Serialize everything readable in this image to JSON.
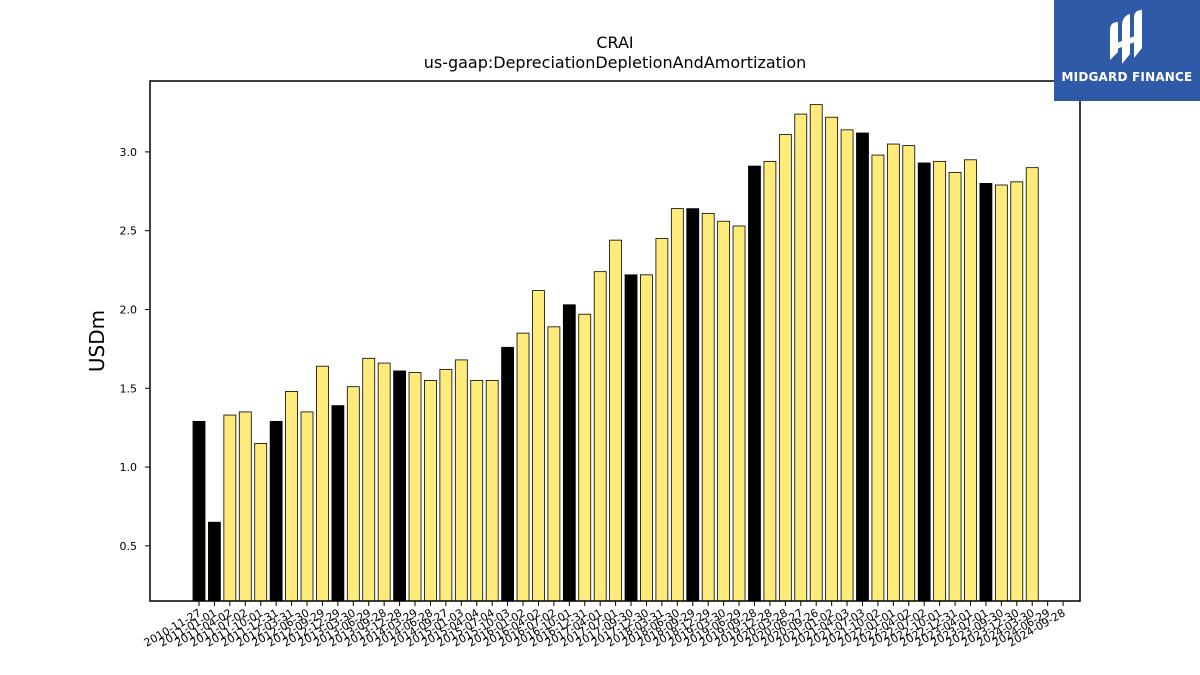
{
  "logo": {
    "text": "MIDGARD FINANCE"
  },
  "chart_data": {
    "type": "bar",
    "title": "CRAI",
    "subtitle": "us-gaap:DepreciationDepletionAndAmortization",
    "ylabel": "USDm",
    "xlabel": "",
    "ylim": [
      0.15,
      3.45
    ],
    "yticks": [
      "0.5",
      "1.0",
      "1.5",
      "2.0",
      "2.5",
      "3.0"
    ],
    "grid": false,
    "colors": {
      "highlight": "#000000",
      "normal": "#ffeb7a",
      "edge": "#000000"
    },
    "categories": [
      "2010-11-27",
      "2011-01-01",
      "2011-04-02",
      "2011-07-02",
      "2011-10-01",
      "2011-12-31",
      "2012-03-31",
      "2012-06-30",
      "2012-09-29",
      "2012-12-29",
      "2013-03-30",
      "2013-06-29",
      "2013-09-28",
      "2013-12-28",
      "2014-03-29",
      "2014-06-28",
      "2014-09-27",
      "2015-01-03",
      "2015-04-04",
      "2015-07-04",
      "2015-10-03",
      "2016-01-02",
      "2016-04-02",
      "2016-07-02",
      "2016-10-01",
      "2016-12-31",
      "2017-04-01",
      "2017-07-01",
      "2017-09-30",
      "2017-12-30",
      "2018-03-31",
      "2018-06-30",
      "2018-09-29",
      "2018-12-29",
      "2019-03-30",
      "2019-06-29",
      "2019-09-28",
      "2019-12-28",
      "2020-03-28",
      "2020-06-27",
      "2020-09-26",
      "2021-01-02",
      "2021-04-03",
      "2021-07-03",
      "2021-10-02",
      "2022-01-01",
      "2022-04-02",
      "2022-07-02",
      "2022-10-01",
      "2022-12-31",
      "2023-04-01",
      "2023-07-01",
      "2023-09-30",
      "2023-12-30",
      "2024-03-30",
      "2024-06-29",
      "2024-09-28"
    ],
    "xtick_labels": [
      "2010-11-27",
      "2011-01-01",
      "2011-04-02",
      "2011-07-02",
      "2011-10-01",
      "2011-12-31",
      "2012-03-31",
      "2012-06-30",
      "2012-09-29",
      "2012-12-29",
      "2013-03-30",
      "2013-06-29",
      "2013-09-28",
      "2013-12-28",
      "2014-03-29",
      "2014-06-28",
      "2014-09-27",
      "2015-01-03",
      "2015-04-04",
      "2015-07-04",
      "2015-10-03",
      "2016-01-02",
      "2016-04-02",
      "2016-07-02",
      "2016-10-01",
      "2016-12-31",
      "2017-04-01",
      "2017-07-01",
      "2017-09-30",
      "2017-12-30",
      "2018-03-31",
      "2018-06-30",
      "2018-09-29",
      "2018-12-29",
      "2019-03-30",
      "2019-06-29",
      "2019-09-28",
      "2019-12-28",
      "2020-03-28",
      "2020-06-27",
      "2020-09-26",
      "2021-01-02",
      "2021-04-03",
      "2021-07-03",
      "2021-10-02",
      "2022-01-01",
      "2022-04-02",
      "2022-07-02",
      "2022-10-01",
      "2022-12-31",
      "2023-04-01",
      "2023-07-01",
      "2023-09-30",
      "2023-12-30",
      "2024-03-30",
      "2024-06-29",
      "2024-09-28"
    ],
    "values": [
      1.29,
      0.65,
      1.33,
      1.35,
      1.15,
      1.29,
      1.48,
      1.35,
      1.64,
      1.39,
      1.51,
      1.69,
      1.66,
      1.61,
      1.6,
      1.55,
      1.62,
      1.68,
      1.55,
      1.55,
      1.76,
      1.85,
      2.12,
      1.89,
      2.03,
      1.97,
      2.24,
      2.44,
      2.22,
      2.22,
      2.45,
      2.64,
      2.64,
      2.61,
      2.56,
      2.53,
      2.91,
      2.94,
      3.11,
      3.24,
      3.3,
      3.22,
      3.14,
      3.12,
      2.98,
      3.05,
      3.04,
      2.93,
      2.94,
      2.87,
      2.95,
      2.8,
      2.79,
      2.81,
      2.9,
      null,
      null
    ],
    "highlight": [
      true,
      true,
      false,
      false,
      false,
      true,
      false,
      false,
      false,
      true,
      false,
      false,
      false,
      true,
      false,
      false,
      false,
      false,
      false,
      false,
      true,
      false,
      false,
      false,
      true,
      false,
      false,
      false,
      true,
      false,
      false,
      false,
      true,
      false,
      false,
      false,
      true,
      false,
      false,
      false,
      false,
      false,
      false,
      true,
      false,
      false,
      false,
      true,
      false,
      false,
      false,
      true,
      false,
      false,
      false,
      false,
      false
    ]
  }
}
